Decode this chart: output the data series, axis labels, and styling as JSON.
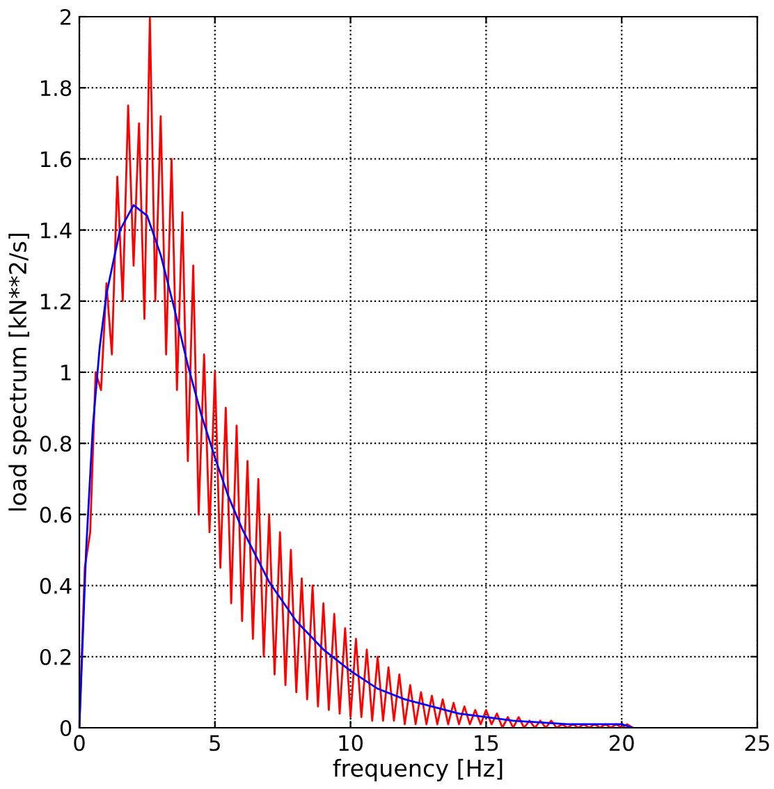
{
  "chart_data": {
    "type": "line",
    "xlabel": "frequency [Hz]",
    "ylabel": "load spectrum [kN**2/s]",
    "xlim": [
      0,
      25
    ],
    "xticks": [
      0,
      5,
      10,
      15,
      20,
      25
    ],
    "ylim": [
      0,
      2
    ],
    "yticks": [
      0,
      0.2,
      0.4,
      0.6,
      0.8,
      1,
      1.2,
      1.4,
      1.6,
      1.8,
      2
    ],
    "grid": true,
    "line_style": "solid",
    "marker": "none",
    "series": [
      {
        "color": "#ff0000",
        "x": [
          0,
          0.2,
          0.4,
          0.6,
          0.8,
          1.0,
          1.2,
          1.4,
          1.6,
          1.8,
          2.0,
          2.2,
          2.4,
          2.6,
          2.8,
          3.0,
          3.2,
          3.4,
          3.6,
          3.8,
          4.0,
          4.2,
          4.4,
          4.6,
          4.8,
          5.0,
          5.2,
          5.4,
          5.6,
          5.8,
          6.0,
          6.2,
          6.4,
          6.6,
          6.8,
          7.0,
          7.2,
          7.4,
          7.6,
          7.8,
          8.0,
          8.2,
          8.4,
          8.6,
          8.8,
          9.0,
          9.2,
          9.4,
          9.6,
          9.8,
          10.0,
          10.2,
          10.4,
          10.6,
          10.8,
          11.0,
          11.2,
          11.4,
          11.6,
          11.8,
          12.0,
          12.2,
          12.4,
          12.6,
          12.8,
          13.0,
          13.2,
          13.4,
          13.6,
          13.8,
          14.0,
          14.2,
          14.4,
          14.6,
          14.8,
          15.0,
          15.2,
          15.4,
          15.6,
          15.8,
          16.0,
          16.2,
          16.4,
          16.6,
          16.8,
          17.0,
          17.2,
          17.4,
          17.6,
          17.8,
          18.0,
          18.2,
          18.4,
          18.6,
          18.8,
          19.0,
          19.2,
          19.4,
          19.6,
          19.8,
          20.0,
          20.2,
          20.4
        ],
        "values": [
          0,
          0.45,
          0.55,
          1.0,
          0.95,
          1.25,
          1.05,
          1.55,
          1.2,
          1.75,
          1.3,
          1.7,
          1.15,
          2.0,
          1.2,
          1.72,
          1.05,
          1.6,
          0.95,
          1.45,
          0.75,
          1.3,
          0.6,
          1.05,
          0.55,
          1.0,
          0.45,
          0.9,
          0.35,
          0.85,
          0.3,
          0.75,
          0.25,
          0.7,
          0.2,
          0.6,
          0.15,
          0.55,
          0.12,
          0.5,
          0.1,
          0.42,
          0.08,
          0.4,
          0.06,
          0.35,
          0.05,
          0.32,
          0.04,
          0.28,
          0.03,
          0.25,
          0.03,
          0.22,
          0.02,
          0.2,
          0.02,
          0.17,
          0.02,
          0.15,
          0.01,
          0.12,
          0.01,
          0.1,
          0.01,
          0.09,
          0.01,
          0.08,
          0.01,
          0.07,
          0.01,
          0.06,
          0.01,
          0.05,
          0.01,
          0.05,
          0.01,
          0.04,
          0,
          0.03,
          0,
          0.03,
          0,
          0.02,
          0,
          0.02,
          0,
          0.02,
          0,
          0.01,
          0,
          0.01,
          0,
          0.01,
          0,
          0.01,
          0,
          0.01,
          0,
          0.01,
          0,
          0.01,
          0
        ]
      },
      {
        "color": "#0000ff",
        "x": [
          0,
          0.25,
          0.5,
          0.75,
          1,
          1.5,
          2,
          2.5,
          3,
          3.5,
          4,
          4.5,
          5,
          5.5,
          6,
          7,
          8,
          9,
          10,
          11,
          12,
          13,
          14,
          15,
          16,
          18,
          20,
          20.4
        ],
        "values": [
          0,
          0.5,
          0.85,
          1.07,
          1.22,
          1.4,
          1.47,
          1.44,
          1.33,
          1.18,
          1.02,
          0.88,
          0.76,
          0.65,
          0.56,
          0.41,
          0.3,
          0.22,
          0.16,
          0.11,
          0.08,
          0.06,
          0.04,
          0.03,
          0.02,
          0.01,
          0.01,
          0
        ]
      }
    ]
  }
}
